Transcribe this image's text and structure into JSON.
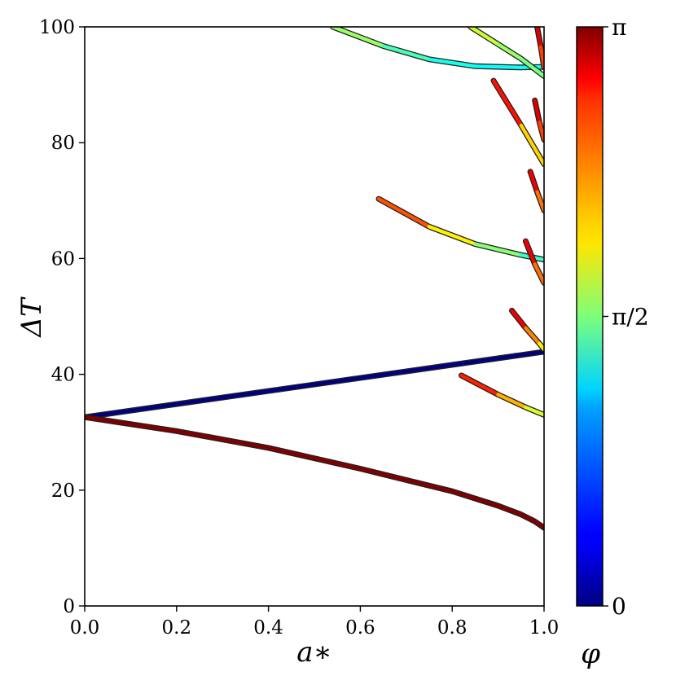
{
  "chart_data": {
    "type": "line",
    "title": "",
    "xlabel": "a∗",
    "ylabel": "ΔT",
    "xlim": [
      0.0,
      1.0
    ],
    "ylim": [
      0,
      100
    ],
    "x_ticks": [
      "0.0",
      "0.2",
      "0.4",
      "0.6",
      "0.8",
      "1.0"
    ],
    "y_ticks": [
      "0",
      "20",
      "40",
      "60",
      "80",
      "100"
    ],
    "grid": false,
    "colorbar": {
      "label": "φ",
      "colormap": "jet",
      "ticks": [
        "0",
        "π/2",
        "π"
      ],
      "range": [
        0,
        3.14159
      ]
    },
    "series": [
      {
        "x": [
          0.0,
          1.0
        ],
        "y": [
          32.6,
          43.9
        ],
        "phi": [
          0.0,
          0.0
        ]
      },
      {
        "x": [
          0.0,
          0.2,
          0.4,
          0.6,
          0.8,
          0.9,
          0.95,
          0.98,
          1.0
        ],
        "y": [
          32.6,
          30.2,
          27.3,
          23.7,
          19.8,
          17.3,
          15.8,
          14.6,
          13.5
        ],
        "phi": [
          3.14,
          3.14,
          3.14,
          3.14,
          3.14,
          3.14,
          3.14,
          3.14,
          3.14
        ]
      },
      {
        "x": [
          0.82,
          0.9,
          0.96,
          1.0
        ],
        "y": [
          39.8,
          36.5,
          34.3,
          33.0
        ],
        "phi": [
          2.9,
          2.4,
          2.0,
          1.7
        ]
      },
      {
        "x": [
          0.93,
          0.96,
          0.99,
          1.0
        ],
        "y": [
          51.0,
          48.0,
          45.3,
          44.3
        ],
        "phi": [
          3.0,
          2.6,
          2.1,
          1.9
        ]
      },
      {
        "x": [
          0.64,
          0.75,
          0.85,
          0.95,
          1.0
        ],
        "y": [
          70.3,
          65.5,
          62.5,
          60.6,
          59.8
        ],
        "phi": [
          2.8,
          2.2,
          1.8,
          1.4,
          1.3
        ]
      },
      {
        "x": [
          0.96,
          0.98,
          1.0
        ],
        "y": [
          63.0,
          59.0,
          55.8
        ],
        "phi": [
          3.0,
          2.6,
          2.2
        ]
      },
      {
        "x": [
          0.97,
          0.985,
          1.0
        ],
        "y": [
          75.0,
          71.5,
          68.3
        ],
        "phi": [
          3.0,
          2.6,
          2.2
        ]
      },
      {
        "x": [
          0.89,
          0.95,
          1.0
        ],
        "y": [
          90.7,
          83.0,
          76.3
        ],
        "phi": [
          3.0,
          2.4,
          1.8
        ]
      },
      {
        "x": [
          0.98,
          0.99,
          1.0
        ],
        "y": [
          87.3,
          83.5,
          80.5
        ],
        "phi": [
          3.0,
          2.7,
          2.4
        ]
      },
      {
        "x": [
          0.54,
          0.65,
          0.75,
          0.85,
          0.95,
          1.0
        ],
        "y": [
          100.0,
          96.7,
          94.4,
          93.2,
          93.0,
          93.1
        ],
        "phi": [
          1.8,
          1.5,
          1.3,
          1.2,
          1.2,
          1.2
        ]
      },
      {
        "x": [
          0.84,
          0.9,
          0.95,
          1.0
        ],
        "y": [
          100.0,
          97.0,
          94.5,
          91.5
        ],
        "phi": [
          1.9,
          1.7,
          1.6,
          1.5
        ]
      },
      {
        "x": [
          0.985,
          0.993,
          1.0
        ],
        "y": [
          100.0,
          96.5,
          93.0
        ],
        "phi": [
          3.0,
          2.7,
          2.4
        ]
      }
    ]
  }
}
